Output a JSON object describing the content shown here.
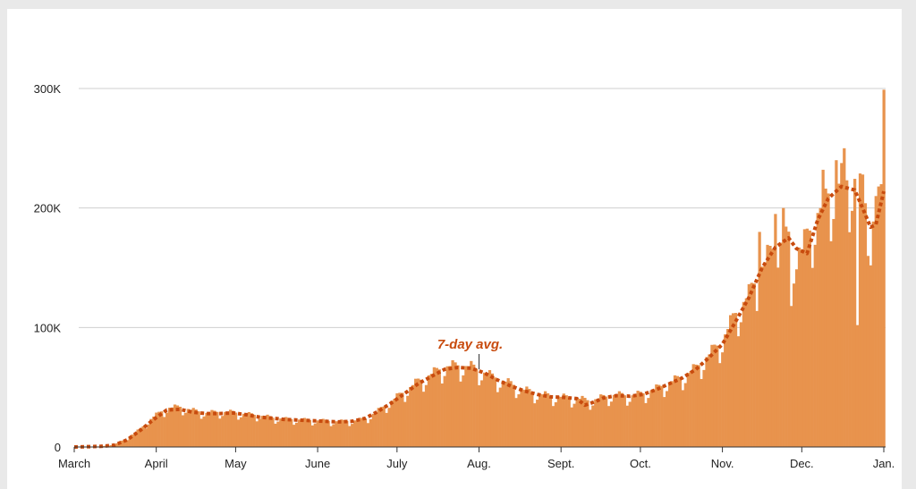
{
  "chart_data": {
    "type": "bar",
    "title": "",
    "xlabel": "",
    "ylabel": "",
    "ylim": [
      0,
      300000
    ],
    "y_ticks": [
      {
        "value": 0,
        "label": "0"
      },
      {
        "value": 100000,
        "label": "100K"
      },
      {
        "value": 200000,
        "label": "200K"
      },
      {
        "value": 300000,
        "label": "300K"
      }
    ],
    "x_ticks": [
      {
        "day": 0,
        "label": "March"
      },
      {
        "day": 31,
        "label": "April"
      },
      {
        "day": 61,
        "label": "May"
      },
      {
        "day": 92,
        "label": "June"
      },
      {
        "day": 122,
        "label": "July"
      },
      {
        "day": 153,
        "label": "Aug."
      },
      {
        "day": 184,
        "label": "Sept."
      },
      {
        "day": 214,
        "label": "Oct."
      },
      {
        "day": 245,
        "label": "Nov."
      },
      {
        "day": 275,
        "label": "Dec."
      },
      {
        "day": 306,
        "label": "Jan."
      }
    ],
    "grid": true,
    "colors": {
      "bars": "#e8934d",
      "avg_line": "#c84b0e",
      "grid": "#cfcfcf"
    },
    "daily_series_name": "",
    "avg_label": "7-day avg.",
    "avg_label_day": 153,
    "daily_anchors": [
      [
        0,
        0
      ],
      [
        10,
        500
      ],
      [
        15,
        2000
      ],
      [
        20,
        7000
      ],
      [
        25,
        15000
      ],
      [
        30,
        25000
      ],
      [
        35,
        32000
      ],
      [
        40,
        33000
      ],
      [
        45,
        30000
      ],
      [
        50,
        28000
      ],
      [
        55,
        29000
      ],
      [
        60,
        28500
      ],
      [
        65,
        27000
      ],
      [
        70,
        26000
      ],
      [
        75,
        24000
      ],
      [
        80,
        23000
      ],
      [
        85,
        22500
      ],
      [
        90,
        22000
      ],
      [
        95,
        21500
      ],
      [
        100,
        21000
      ],
      [
        105,
        21500
      ],
      [
        110,
        23000
      ],
      [
        115,
        30000
      ],
      [
        120,
        38000
      ],
      [
        125,
        46000
      ],
      [
        130,
        54000
      ],
      [
        135,
        60000
      ],
      [
        140,
        66000
      ],
      [
        145,
        67000
      ],
      [
        150,
        66000
      ],
      [
        155,
        61000
      ],
      [
        160,
        56000
      ],
      [
        165,
        52000
      ],
      [
        170,
        47000
      ],
      [
        175,
        44000
      ],
      [
        180,
        42000
      ],
      [
        185,
        41000
      ],
      [
        190,
        40000
      ],
      [
        195,
        38000
      ],
      [
        200,
        41000
      ],
      [
        205,
        43000
      ],
      [
        210,
        42000
      ],
      [
        215,
        44000
      ],
      [
        220,
        48000
      ],
      [
        225,
        53000
      ],
      [
        230,
        58000
      ],
      [
        235,
        65000
      ],
      [
        240,
        76000
      ],
      [
        245,
        88000
      ],
      [
        250,
        110000
      ],
      [
        255,
        125000
      ],
      [
        260,
        148000
      ],
      [
        265,
        166000
      ],
      [
        270,
        170000
      ],
      [
        275,
        162000
      ],
      [
        280,
        188000
      ],
      [
        285,
        208000
      ],
      [
        290,
        218000
      ],
      [
        295,
        220000
      ],
      [
        300,
        195000
      ],
      [
        302,
        185000
      ],
      [
        304,
        200000
      ],
      [
        306,
        215000
      ]
    ],
    "daily_spikes": [
      {
        "day": 306,
        "value": 299000
      },
      {
        "day": 303,
        "value": 210000
      },
      {
        "day": 298,
        "value": 228000
      },
      {
        "day": 296,
        "value": 102000
      },
      {
        "day": 283,
        "value": 232000
      },
      {
        "day": 288,
        "value": 240000
      },
      {
        "day": 291,
        "value": 250000
      },
      {
        "day": 268,
        "value": 200000
      },
      {
        "day": 265,
        "value": 195000
      },
      {
        "day": 259,
        "value": 180000
      },
      {
        "day": 271,
        "value": 118000
      },
      {
        "day": 301,
        "value": 152000
      }
    ],
    "avg_points": [
      [
        0,
        0
      ],
      [
        10,
        500
      ],
      [
        15,
        1500
      ],
      [
        20,
        6000
      ],
      [
        25,
        14000
      ],
      [
        30,
        23000
      ],
      [
        35,
        31000
      ],
      [
        40,
        31500
      ],
      [
        45,
        29000
      ],
      [
        50,
        28000
      ],
      [
        55,
        28000
      ],
      [
        60,
        28500
      ],
      [
        65,
        27000
      ],
      [
        70,
        25000
      ],
      [
        75,
        24000
      ],
      [
        80,
        23000
      ],
      [
        85,
        22500
      ],
      [
        90,
        22000
      ],
      [
        95,
        21500
      ],
      [
        100,
        21000
      ],
      [
        105,
        21500
      ],
      [
        110,
        24000
      ],
      [
        115,
        30000
      ],
      [
        120,
        37000
      ],
      [
        125,
        45000
      ],
      [
        130,
        53000
      ],
      [
        135,
        59000
      ],
      [
        140,
        65000
      ],
      [
        145,
        66500
      ],
      [
        150,
        66000
      ],
      [
        155,
        62000
      ],
      [
        160,
        56000
      ],
      [
        165,
        51000
      ],
      [
        170,
        47000
      ],
      [
        175,
        44000
      ],
      [
        180,
        42000
      ],
      [
        185,
        41500
      ],
      [
        190,
        40500
      ],
      [
        193,
        35000
      ],
      [
        197,
        38000
      ],
      [
        200,
        41000
      ],
      [
        205,
        43000
      ],
      [
        210,
        42500
      ],
      [
        215,
        44000
      ],
      [
        220,
        48000
      ],
      [
        225,
        53000
      ],
      [
        230,
        58000
      ],
      [
        235,
        65000
      ],
      [
        240,
        75000
      ],
      [
        245,
        86000
      ],
      [
        250,
        105000
      ],
      [
        255,
        125000
      ],
      [
        260,
        150000
      ],
      [
        265,
        167000
      ],
      [
        270,
        175000
      ],
      [
        273,
        166000
      ],
      [
        277,
        162000
      ],
      [
        281,
        190000
      ],
      [
        285,
        208000
      ],
      [
        290,
        218000
      ],
      [
        295,
        215000
      ],
      [
        298,
        200000
      ],
      [
        301,
        184000
      ],
      [
        303,
        186000
      ],
      [
        306,
        214000
      ]
    ]
  }
}
